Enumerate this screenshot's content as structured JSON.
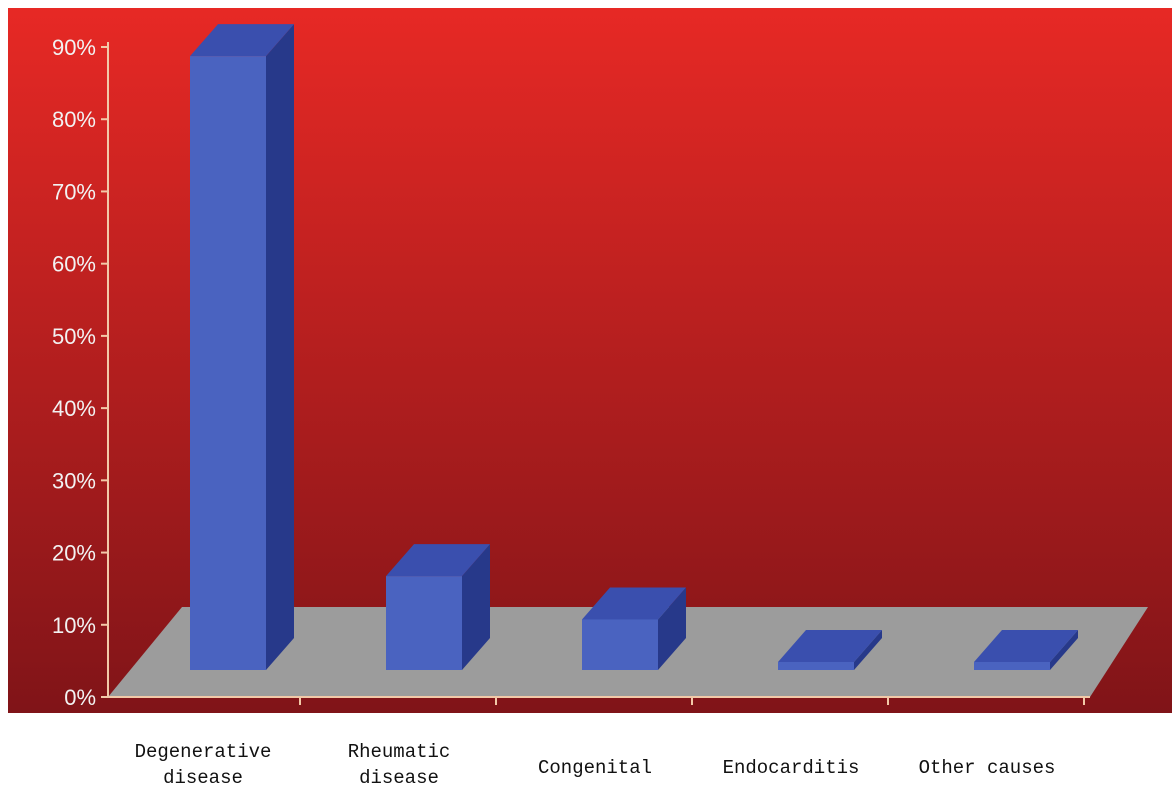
{
  "chart_data": {
    "type": "bar",
    "categories": [
      [
        "Degenerative",
        "disease"
      ],
      [
        "Rheumatic",
        "disease"
      ],
      [
        "Congenital"
      ],
      [
        "Endocarditis"
      ],
      [
        "Other causes"
      ]
    ],
    "values": [
      85,
      13,
      7,
      1,
      1
    ],
    "y_ticks": [
      "0%",
      "10%",
      "20%",
      "30%",
      "40%",
      "50%",
      "60%",
      "70%",
      "80%",
      "90%"
    ],
    "ylim": [
      0,
      90
    ],
    "grid": false,
    "style": "3d-columns",
    "colors": {
      "background_top": "#e72925",
      "background_bottom": "#801418",
      "floor": "#9c9c9c",
      "bar_front": "#4a63c0",
      "bar_top": "#3a4fae",
      "bar_side": "#27398a",
      "axis": "#f2c9a8"
    }
  }
}
